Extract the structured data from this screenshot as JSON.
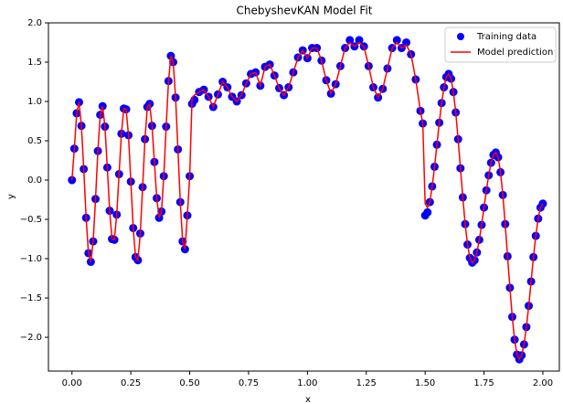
{
  "chart_data": {
    "type": "scatter_line",
    "title": "ChebyshevKAN Model Fit",
    "x_label": "x",
    "y_label": "y",
    "x": [
      0,
      0.01,
      0.02,
      0.03,
      0.04,
      0.05,
      0.06,
      0.07,
      0.08,
      0.09,
      0.1,
      0.11,
      0.12,
      0.13,
      0.14,
      0.15,
      0.16,
      0.17,
      0.18,
      0.19,
      0.2,
      0.21,
      0.22,
      0.23,
      0.24,
      0.25,
      0.26,
      0.27,
      0.28,
      0.29,
      0.3,
      0.31,
      0.32,
      0.33,
      0.34,
      0.35,
      0.36,
      0.37,
      0.38,
      0.39,
      0.4,
      0.41,
      0.42,
      0.43,
      0.44,
      0.45,
      0.46,
      0.47,
      0.48,
      0.49,
      0.5,
      0.51,
      0.52,
      0.54,
      0.56,
      0.58,
      0.6,
      0.62,
      0.64,
      0.66,
      0.68,
      0.7,
      0.72,
      0.74,
      0.76,
      0.78,
      0.8,
      0.82,
      0.84,
      0.86,
      0.88,
      0.9,
      0.92,
      0.94,
      0.96,
      0.98,
      1.0,
      1.02,
      1.04,
      1.06,
      1.08,
      1.1,
      1.12,
      1.14,
      1.16,
      1.18,
      1.2,
      1.22,
      1.24,
      1.26,
      1.28,
      1.3,
      1.32,
      1.34,
      1.36,
      1.38,
      1.4,
      1.42,
      1.44,
      1.46,
      1.48,
      1.49,
      1.5,
      1.51,
      1.52,
      1.53,
      1.54,
      1.55,
      1.56,
      1.57,
      1.58,
      1.59,
      1.6,
      1.61,
      1.62,
      1.63,
      1.64,
      1.65,
      1.66,
      1.67,
      1.68,
      1.69,
      1.7,
      1.71,
      1.72,
      1.73,
      1.74,
      1.75,
      1.76,
      1.77,
      1.78,
      1.79,
      1.8,
      1.81,
      1.82,
      1.83,
      1.84,
      1.85,
      1.86,
      1.87,
      1.88,
      1.89,
      1.9,
      1.91,
      1.92,
      1.93,
      1.94,
      1.95,
      1.96,
      1.97,
      1.98,
      1.99,
      2.0
    ],
    "series": [
      {
        "name": "Training data",
        "kind": "scatter",
        "color": "#0000ff",
        "values": [
          0,
          0.4,
          0.85,
          0.99,
          0.69,
          0.14,
          -0.48,
          -0.93,
          -1.04,
          -0.78,
          -0.24,
          0.37,
          0.83,
          0.94,
          0.68,
          0.16,
          -0.39,
          -0.75,
          -0.76,
          -0.44,
          0.075,
          0.59,
          0.91,
          0.9,
          0.57,
          -0.02,
          -0.61,
          -0.98,
          -1.02,
          -0.68,
          -0.09,
          0.52,
          0.93,
          0.97,
          0.69,
          0.23,
          -0.23,
          -0.48,
          -0.4,
          0.05,
          0.68,
          1.26,
          1.58,
          1.5,
          1.05,
          0.39,
          -0.28,
          -0.78,
          -0.88,
          -0.45,
          0.05,
          0.97,
          1.02,
          1.12,
          1.15,
          1.06,
          0.93,
          1.09,
          1.25,
          1.18,
          1.06,
          1.0,
          1.08,
          1.23,
          1.35,
          1.37,
          1.2,
          1.44,
          1.47,
          1.33,
          1.17,
          1.08,
          1.18,
          1.37,
          1.56,
          1.65,
          1.55,
          1.68,
          1.68,
          1.52,
          1.27,
          1.1,
          1.22,
          1.45,
          1.68,
          1.78,
          1.7,
          1.78,
          1.7,
          1.45,
          1.18,
          1.05,
          1.16,
          1.42,
          1.68,
          1.78,
          1.68,
          1.75,
          1.6,
          1.28,
          0.88,
          0.72,
          -0.45,
          -0.41,
          -0.28,
          -0.08,
          0.17,
          0.45,
          0.73,
          0.98,
          1.18,
          1.31,
          1.35,
          1.29,
          1.12,
          0.86,
          0.52,
          0.15,
          -0.22,
          -0.56,
          -0.82,
          -0.99,
          -1.05,
          -1.02,
          -0.92,
          -0.76,
          -0.57,
          -0.35,
          -0.13,
          0.06,
          0.22,
          0.32,
          0.35,
          0.29,
          0.1,
          -0.19,
          -0.56,
          -0.97,
          -1.37,
          -1.74,
          -2.03,
          -2.22,
          -2.28,
          -2.23,
          -2.09,
          -1.87,
          -1.6,
          -1.29,
          -0.98,
          -0.71,
          -0.49,
          -0.35,
          -0.3
        ]
      },
      {
        "name": "Model prediction",
        "kind": "line",
        "color": "#ff0000",
        "values": [
          0,
          0.4,
          0.85,
          0.99,
          0.69,
          0.14,
          -0.48,
          -0.93,
          -1.04,
          -0.78,
          -0.24,
          0.37,
          0.83,
          0.94,
          0.68,
          0.16,
          -0.39,
          -0.75,
          -0.76,
          -0.44,
          0.075,
          0.59,
          0.91,
          0.9,
          0.57,
          -0.02,
          -0.61,
          -0.98,
          -1.02,
          -0.68,
          -0.09,
          0.52,
          0.93,
          0.97,
          0.69,
          0.23,
          -0.23,
          -0.48,
          -0.4,
          0.05,
          0.68,
          1.26,
          1.58,
          1.5,
          1.05,
          0.39,
          -0.28,
          -0.78,
          -0.88,
          -0.45,
          0.05,
          1.05,
          1.08,
          1.12,
          1.15,
          1.06,
          0.93,
          1.09,
          1.25,
          1.18,
          1.06,
          1.0,
          1.08,
          1.23,
          1.35,
          1.37,
          1.2,
          1.44,
          1.47,
          1.33,
          1.17,
          1.08,
          1.18,
          1.37,
          1.56,
          1.65,
          1.55,
          1.68,
          1.68,
          1.52,
          1.27,
          1.1,
          1.22,
          1.45,
          1.68,
          1.75,
          1.7,
          1.75,
          1.7,
          1.45,
          1.18,
          1.05,
          1.16,
          1.42,
          1.68,
          1.75,
          1.68,
          1.72,
          1.6,
          1.28,
          0.88,
          0.72,
          -0.3,
          -0.35,
          -0.28,
          -0.08,
          0.17,
          0.45,
          0.73,
          0.98,
          1.18,
          1.31,
          1.35,
          1.29,
          1.12,
          0.86,
          0.52,
          0.15,
          -0.22,
          -0.56,
          -0.82,
          -0.99,
          -1.05,
          -1.02,
          -0.92,
          -0.76,
          -0.57,
          -0.35,
          -0.13,
          0.06,
          0.22,
          0.32,
          0.35,
          0.29,
          0.1,
          -0.19,
          -0.56,
          -0.97,
          -1.37,
          -1.74,
          -2.03,
          -2.22,
          -2.28,
          -2.23,
          -2.09,
          -1.87,
          -1.6,
          -1.29,
          -0.98,
          -0.71,
          -0.49,
          -0.35,
          -0.3
        ]
      }
    ],
    "xlim": [
      -0.1,
      2.07
    ],
    "ylim": [
      -2.43,
      2.0
    ],
    "xticks": [
      {
        "value": 0,
        "label": "0.00"
      },
      0.25,
      {
        "value": 0.5,
        "label": "0.50"
      },
      0.75,
      {
        "value": 1,
        "label": "1.00"
      },
      1.25,
      {
        "value": 1.5,
        "label": "1.50"
      },
      1.75,
      {
        "value": 2,
        "label": "2.00"
      }
    ],
    "yticks": [
      {
        "value": 2,
        "label": "2.0"
      },
      1.5,
      {
        "value": 1,
        "label": "1.0"
      },
      0.5,
      {
        "value": 0,
        "label": "0.0"
      },
      {
        "value": -0.5,
        "label": "−0.5"
      },
      {
        "value": -1,
        "label": "−1.0"
      },
      {
        "value": -1.5,
        "label": "−1.5"
      },
      {
        "value": -2,
        "label": "−2.0"
      }
    ],
    "legend": "upper right",
    "grid": false
  }
}
